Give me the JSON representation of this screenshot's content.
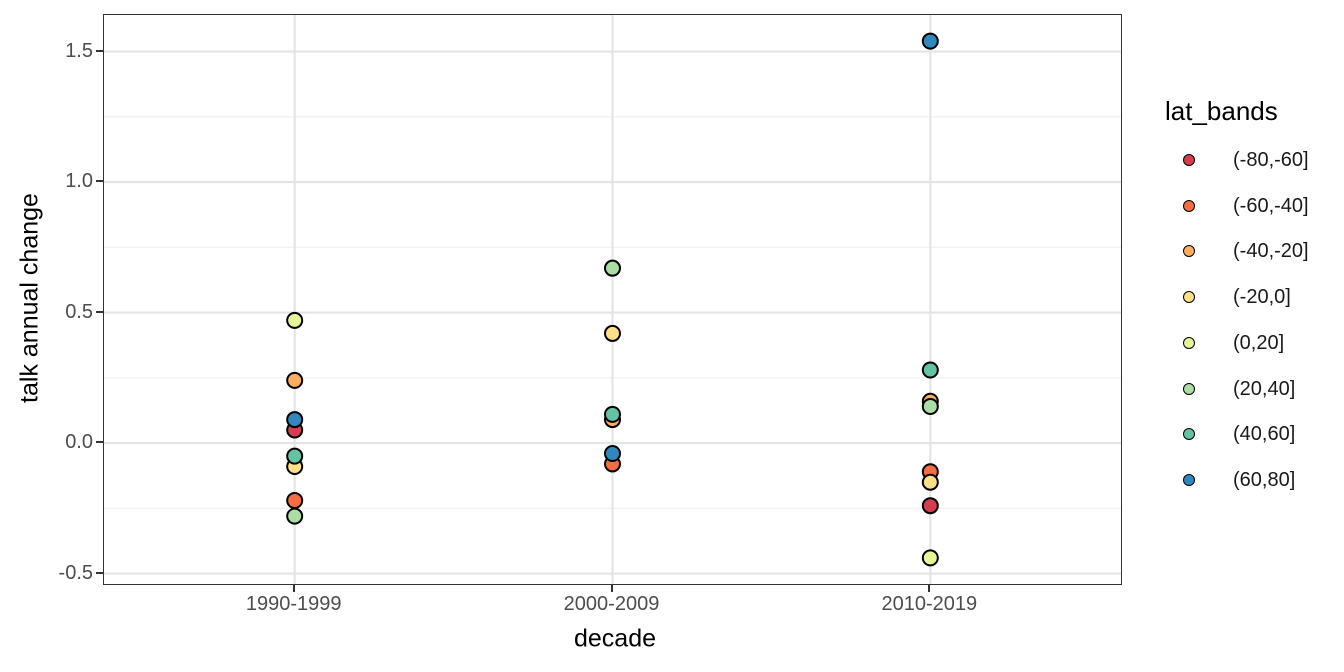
{
  "legend": {
    "title": "lat_bands",
    "items": [
      {
        "label": "(-80,-60]",
        "color": "#d53e4f"
      },
      {
        "label": "(-60,-40]",
        "color": "#f46d43"
      },
      {
        "label": "(-40,-20]",
        "color": "#fdae61"
      },
      {
        "label": "(-20,0]",
        "color": "#fee08b"
      },
      {
        "label": "(0,20]",
        "color": "#e6f598"
      },
      {
        "label": "(20,40]",
        "color": "#abdda4"
      },
      {
        "label": "(40,60]",
        "color": "#66c2a5"
      },
      {
        "label": "(60,80]",
        "color": "#3288bd"
      }
    ]
  },
  "chart_data": {
    "type": "scatter",
    "title": "",
    "xlabel": "decade",
    "ylabel": "talk annual change",
    "categories": [
      "1990-1999",
      "2000-2009",
      "2010-2019"
    ],
    "ylim": [
      -0.54,
      1.64
    ],
    "y_major_ticks": [
      1.5,
      1.0,
      0.5,
      0.0,
      -0.5
    ],
    "y_major_tick_labels": [
      "1.5",
      "1.0",
      "0.5",
      "0.0",
      "-0.5"
    ],
    "y_minor_ticks": [
      1.25,
      0.75,
      0.25,
      -0.25
    ],
    "grid": true,
    "legend_position": "right",
    "point_style": {
      "fill_radius": 7.5,
      "stroke": "#000000",
      "stroke_width": 2
    },
    "colors": {
      "major_grid": "#e4e4e4",
      "minor_grid": "#f0f0f0",
      "panel_border": "#333333",
      "tick_text": "#4d4d4d",
      "axis_title_text": "#000000"
    },
    "series": [
      {
        "name": "(-80,-60]",
        "color": "#d53e4f",
        "values": [
          0.05,
          null,
          -0.24
        ]
      },
      {
        "name": "(-60,-40]",
        "color": "#f46d43",
        "values": [
          -0.22,
          -0.08,
          -0.11
        ]
      },
      {
        "name": "(-40,-20]",
        "color": "#fdae61",
        "values": [
          0.24,
          0.09,
          0.16
        ]
      },
      {
        "name": "(-20,0]",
        "color": "#fee08b",
        "values": [
          -0.09,
          0.42,
          -0.15
        ]
      },
      {
        "name": "(0,20]",
        "color": "#e6f598",
        "values": [
          0.47,
          null,
          -0.44
        ]
      },
      {
        "name": "(20,40]",
        "color": "#abdda4",
        "values": [
          -0.28,
          0.67,
          0.14
        ]
      },
      {
        "name": "(40,60]",
        "color": "#66c2a5",
        "values": [
          -0.05,
          0.11,
          0.28
        ]
      },
      {
        "name": "(60,80]",
        "color": "#3288bd",
        "values": [
          0.09,
          -0.04,
          1.54
        ]
      }
    ]
  }
}
